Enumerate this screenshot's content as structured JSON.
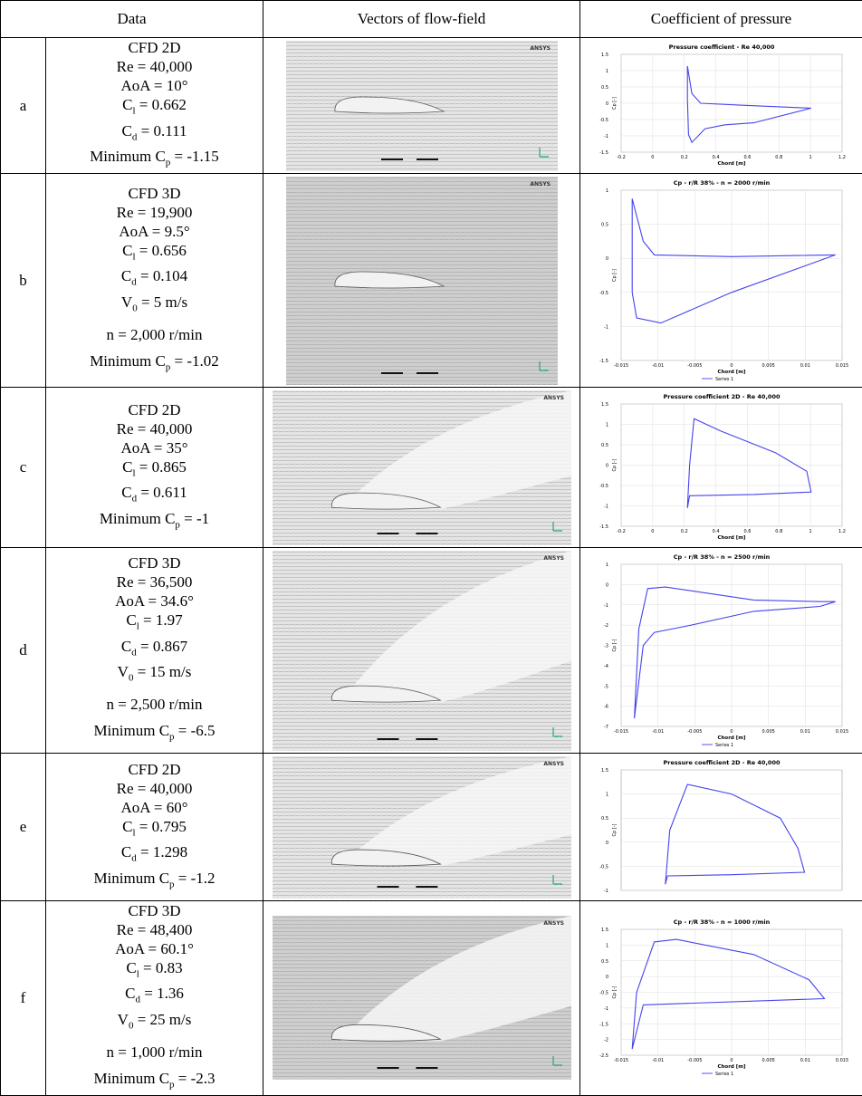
{
  "header": [
    "Data",
    "Vectors of flow-field",
    "Coefficient of pressure"
  ],
  "rows": [
    {
      "label": "a",
      "lines": [
        "CFD 2D",
        "Re = 40,000",
        "AoA = 10°",
        {
          "pre": "C",
          "sub": "l",
          "post": " = 0.662"
        },
        {
          "pre": "C",
          "sub": "d",
          "post": " = 0.111"
        },
        {
          "pre": "Minimum C",
          "sub": "p",
          "post": " = -1.15"
        }
      ],
      "flow": {
        "brand": "ANSYS"
      },
      "plot": {
        "title": "Pressure coefficient - Re 40,000",
        "xlabel": "Chord [m]",
        "ylabel": "Cp [-]",
        "xticks": [
          "-0.2",
          "0",
          "0.2",
          "0.4",
          "0.6",
          "0.8",
          "1",
          "1.2"
        ],
        "yticks": [
          "1.5",
          "1",
          "0.5",
          "0",
          "-0.5",
          "-1",
          "-1.5"
        ]
      }
    },
    {
      "label": "b",
      "lines": [
        "CFD 3D",
        "Re = 19,900",
        "AoA = 9.5°",
        {
          "pre": "C",
          "sub": "l",
          "post": " = 0.656"
        },
        {
          "pre": "C",
          "sub": "d",
          "post": " = 0.104"
        },
        {
          "pre": "V",
          "sub": "0",
          "post": " = 5 m/s"
        },
        "n = 2,000 r/min",
        {
          "pre": "Minimum C",
          "sub": "p",
          "post": " = -1.02"
        }
      ],
      "flow": {
        "brand": "ANSYS"
      },
      "plot": {
        "title": "Cp - r/R 38% - n = 2000 r/min",
        "xlabel": "Chord [m]",
        "ylabel": "Cp [-]",
        "legend": "Series 1",
        "xticks": [
          "-0.015",
          "-0.01",
          "-0.005",
          "0",
          "0.005",
          "0.01",
          "0.015"
        ],
        "yticks": [
          "1",
          "0.5",
          "0",
          "-0.5",
          "-1",
          "-1.5"
        ]
      }
    },
    {
      "label": "c",
      "lines": [
        "CFD 2D",
        "Re = 40,000",
        "AoA = 35°",
        {
          "pre": "C",
          "sub": "l",
          "post": " = 0.865"
        },
        {
          "pre": "C",
          "sub": "d",
          "post": " = 0.611"
        },
        {
          "pre": "Minimum C",
          "sub": "p",
          "post": " = -1"
        }
      ],
      "flow": {
        "brand": "ANSYS"
      },
      "plot": {
        "title": "Pressure coefficient 2D - Re 40,000",
        "xlabel": "Chord [m]",
        "ylabel": "Cp [-]",
        "xticks": [
          "-0.2",
          "0",
          "0.2",
          "0.4",
          "0.6",
          "0.8",
          "1",
          "1.2"
        ],
        "yticks": [
          "1.5",
          "1",
          "0.5",
          "0",
          "-0.5",
          "-1",
          "-1.5"
        ]
      }
    },
    {
      "label": "d",
      "lines": [
        "CFD 3D",
        "Re = 36,500",
        "AoA = 34.6°",
        {
          "pre": "C",
          "sub": "l",
          "post": " = 1.97"
        },
        {
          "pre": "C",
          "sub": "d",
          "post": " = 0.867"
        },
        {
          "pre": "V",
          "sub": "0",
          "post": " = 15 m/s"
        },
        "n = 2,500 r/min",
        {
          "pre": "Minimum C",
          "sub": "p",
          "post": " = -6.5"
        }
      ],
      "flow": {
        "brand": "ANSYS"
      },
      "plot": {
        "title": "Cp - r/R 38% - n = 2500 r/min",
        "xlabel": "Chord [m]",
        "ylabel": "Cp [-]",
        "legend": "Series 1",
        "xticks": [
          "-0.015",
          "-0.01",
          "-0.005",
          "0",
          "0.005",
          "0.01",
          "0.015"
        ],
        "yticks": [
          "1",
          "0",
          "-1",
          "-2",
          "-3",
          "-4",
          "-5",
          "-6",
          "-7"
        ]
      }
    },
    {
      "label": "e",
      "lines": [
        "CFD 2D",
        "Re = 40,000",
        "AoA = 60°",
        {
          "pre": "C",
          "sub": "l",
          "post": " = 0.795"
        },
        {
          "pre": "C",
          "sub": "d",
          "post": " = 1.298"
        },
        {
          "pre": "Minimum C",
          "sub": "p",
          "post": " = -1.2"
        }
      ],
      "flow": {
        "brand": "ANSYS"
      },
      "plot": {
        "title": "Pressure coefficient 2D - Re 40,000",
        "ylabel": "Cp [-]",
        "yticks": [
          "1.5",
          "1",
          "0.5",
          "0",
          "-0.5",
          "-1"
        ]
      }
    },
    {
      "label": "f",
      "lines": [
        "CFD 3D",
        "Re = 48,400",
        "AoA = 60.1°",
        {
          "pre": "C",
          "sub": "l",
          "post": " = 0.83"
        },
        {
          "pre": "C",
          "sub": "d",
          "post": " = 1.36"
        },
        {
          "pre": "V",
          "sub": "0",
          "post": " = 25 m/s"
        },
        "n = 1,000 r/min",
        {
          "pre": "Minimum C",
          "sub": "p",
          "post": " = -2.3"
        }
      ],
      "flow": {
        "brand": "ANSYS"
      },
      "plot": {
        "title": "Cp - r/R 38% - n = 1000 r/min",
        "xlabel": "Chord [m]",
        "ylabel": "Cp [-]",
        "legend": "Series 1",
        "xticks": [
          "-0.015",
          "-0.01",
          "-0.005",
          "0",
          "0.005",
          "0.01",
          "0.015"
        ],
        "yticks": [
          "1.5",
          "1",
          "0.5",
          "0",
          "-0.5",
          "-1",
          "-1.5",
          "-2",
          "-2.5"
        ]
      }
    }
  ]
}
